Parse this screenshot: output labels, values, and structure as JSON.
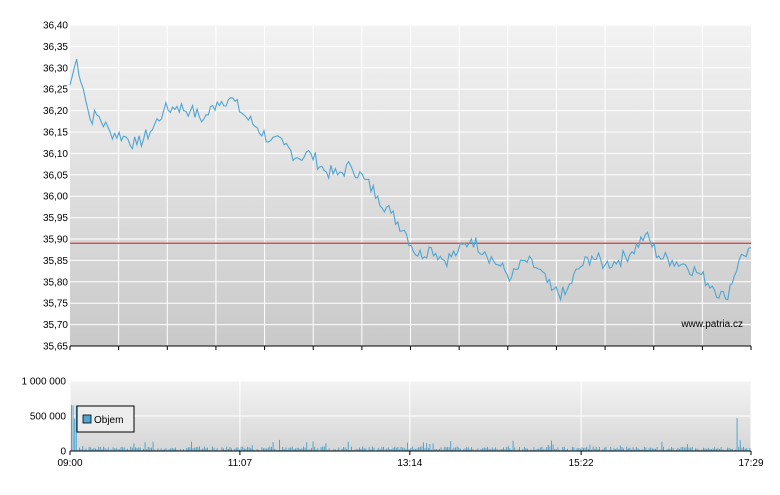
{
  "chart_data": [
    {
      "type": "line",
      "title": "",
      "xlabel": "",
      "ylabel": "",
      "ylim": [
        35.65,
        36.4
      ],
      "yticks": [
        "36,40",
        "36,35",
        "36,30",
        "36,25",
        "36,20",
        "36,15",
        "36,10",
        "36,05",
        "36,00",
        "35,95",
        "35,90",
        "35,85",
        "35,80",
        "35,75",
        "35,70",
        "35,65"
      ],
      "reference_line": 35.89,
      "reference_color": "#d23c3c",
      "line_color": "#4fa6d2",
      "grid": true,
      "watermark": "www.patria.cz",
      "series": [
        {
          "x": [
            "09:00",
            "09:05",
            "09:10",
            "09:15",
            "09:20",
            "09:30",
            "09:40",
            "09:50",
            "10:00",
            "10:10",
            "10:20",
            "10:30",
            "10:40",
            "10:50",
            "11:00",
            "11:10",
            "11:20",
            "11:30",
            "11:40",
            "11:50",
            "12:00",
            "12:10",
            "12:20",
            "12:30",
            "12:40",
            "12:50",
            "13:00",
            "13:10",
            "13:20",
            "13:30",
            "13:40",
            "13:50",
            "14:00",
            "14:10",
            "14:20",
            "14:30",
            "14:40",
            "14:50",
            "15:00",
            "15:10",
            "15:20",
            "15:30",
            "15:40",
            "15:50",
            "16:00",
            "16:10",
            "16:20",
            "16:30",
            "16:40",
            "16:50",
            "17:00",
            "17:10",
            "17:20",
            "17:29"
          ],
          "values": [
            36.26,
            36.32,
            36.25,
            36.18,
            36.19,
            36.15,
            36.14,
            36.12,
            36.15,
            36.2,
            36.21,
            36.2,
            36.18,
            36.22,
            36.23,
            36.19,
            36.16,
            36.13,
            36.12,
            36.09,
            36.1,
            36.06,
            36.05,
            36.07,
            36.04,
            36.0,
            35.96,
            35.92,
            35.86,
            35.88,
            35.85,
            35.87,
            35.9,
            35.87,
            35.84,
            35.81,
            35.85,
            35.83,
            35.78,
            35.77,
            35.83,
            35.86,
            35.84,
            35.85,
            35.87,
            35.91,
            35.86,
            35.85,
            35.84,
            35.82,
            35.79,
            35.76,
            35.85,
            35.88
          ]
        }
      ]
    },
    {
      "type": "bar",
      "title": "",
      "ylim": [
        0,
        1000000
      ],
      "yticks": [
        "1 000 000",
        "500 000",
        "0"
      ],
      "xticks": [
        "09:00",
        "11:07",
        "13:14",
        "15:22",
        "17:29"
      ],
      "legend": "Objem",
      "legend_position": "top-left",
      "bar_color": "#4fa6d2",
      "grid": true
    }
  ]
}
